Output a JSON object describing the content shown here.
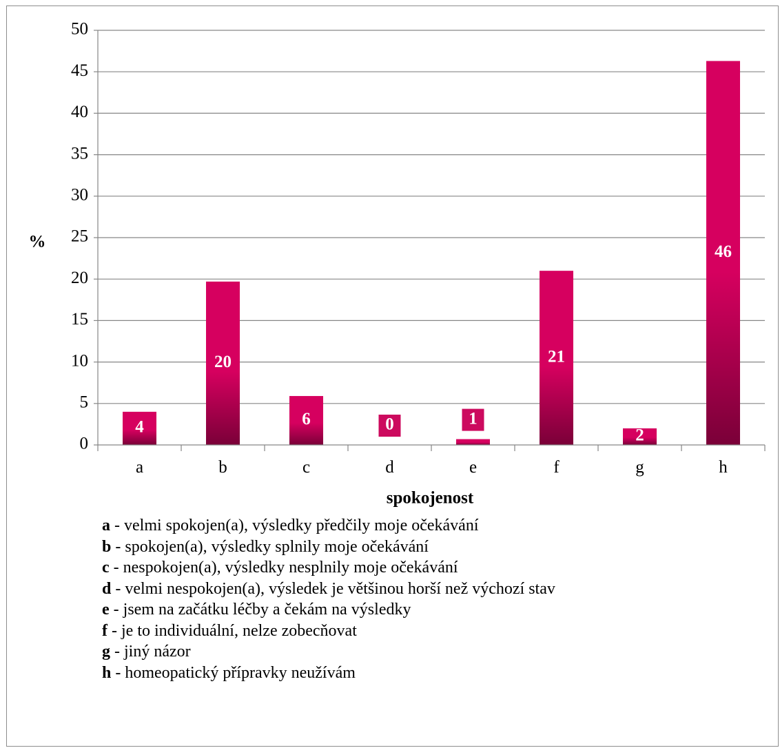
{
  "chart_data": {
    "type": "bar",
    "categories": [
      "a",
      "b",
      "c",
      "d",
      "e",
      "f",
      "g",
      "h"
    ],
    "values": [
      4,
      19.7,
      5.9,
      0,
      0.7,
      21,
      2,
      46.3
    ],
    "data_labels": [
      "4",
      "20",
      "6",
      "0",
      "1",
      "21",
      "2",
      "46"
    ],
    "xlabel": "spokojenost",
    "ylabel": "%",
    "ylim": [
      0,
      50
    ],
    "yticks": [
      0,
      5,
      10,
      15,
      20,
      25,
      30,
      35,
      40,
      45,
      50
    ],
    "grid": true,
    "bar_color": "#d6005f",
    "bar_color_dark": "#7a0038",
    "label_box_color": "#cc0a5e"
  },
  "legend": [
    {
      "key": "a",
      "text": " - velmi spokojen(a), výsledky předčily moje očekávání"
    },
    {
      "key": "b",
      "text": " - spokojen(a), výsledky splnily moje očekávání"
    },
    {
      "key": "c",
      "text": " - nespokojen(a), výsledky nesplnily moje očekávání"
    },
    {
      "key": "d",
      "text": " - velmi nespokojen(a), výsledek je většinou horší než výchozí stav"
    },
    {
      "key": "e",
      "text": " - jsem na začátku léčby a čekám na výsledky"
    },
    {
      "key": "f",
      "text": " - je to individuální, nelze zobecňovat"
    },
    {
      "key": "g",
      "text": " - jiný názor"
    },
    {
      "key": "h",
      "text": " - homeopatický přípravky neužívám"
    }
  ]
}
